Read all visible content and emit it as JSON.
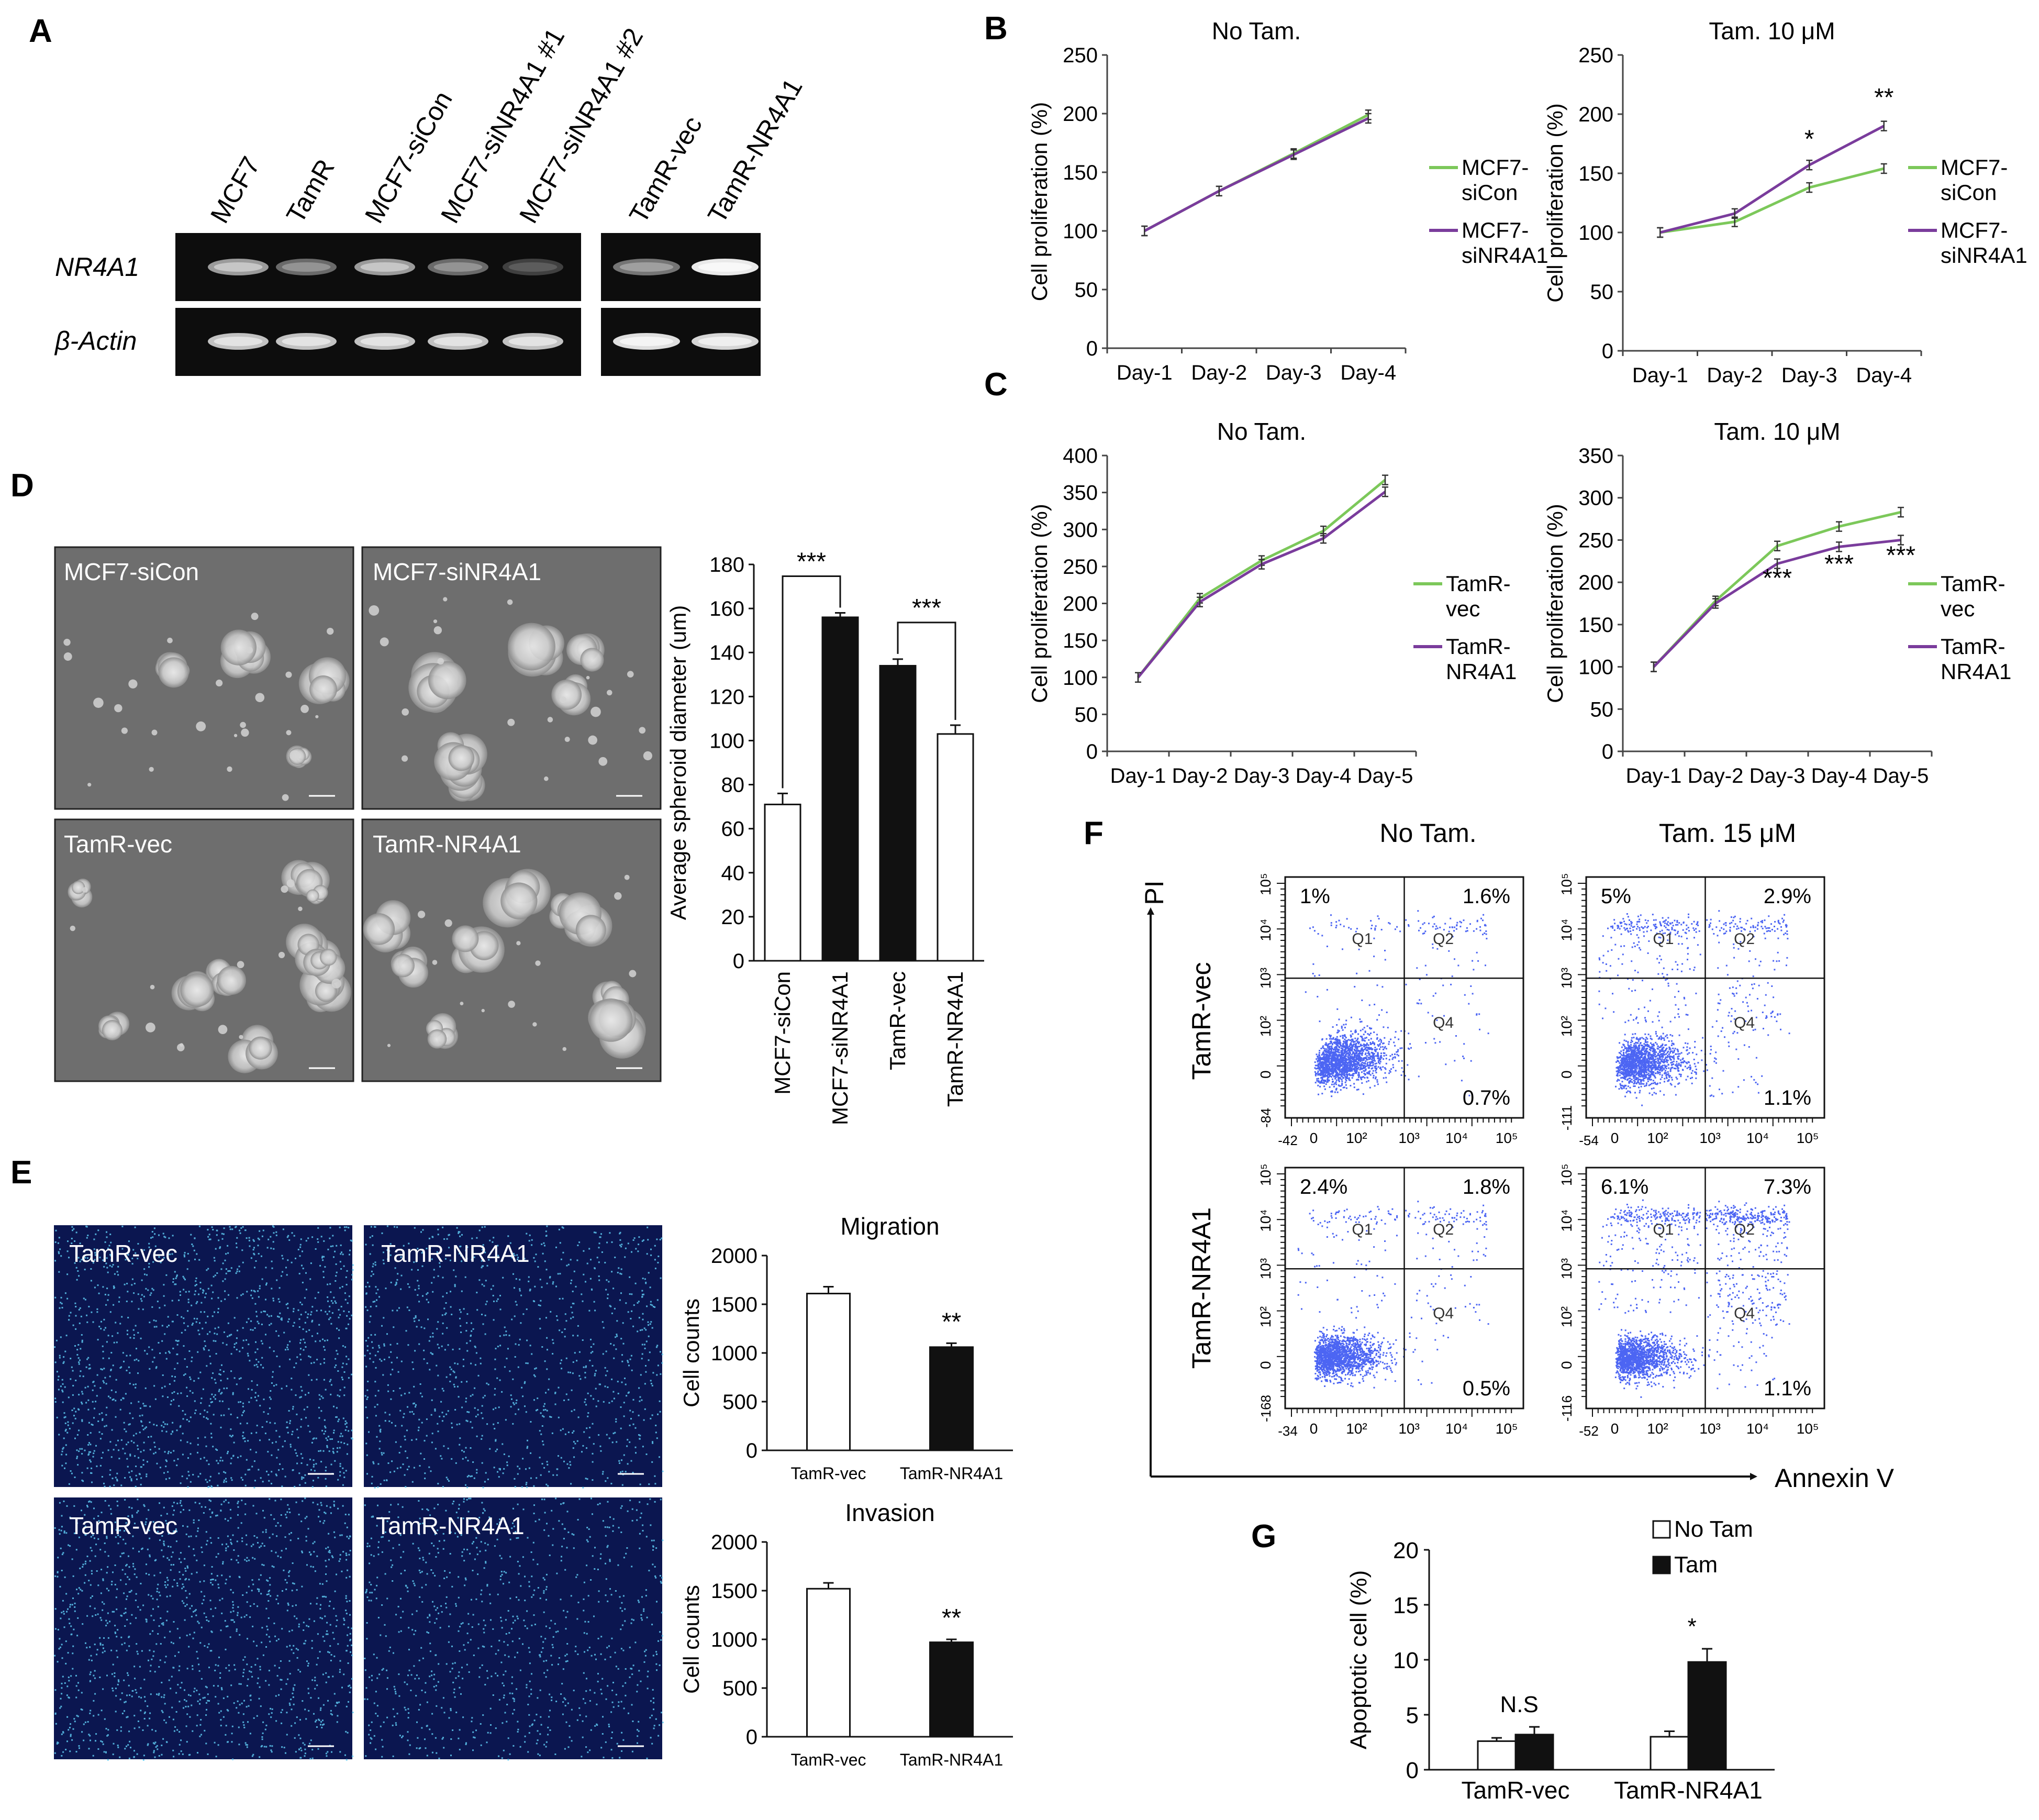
{
  "panel_letters": {
    "A": "A",
    "B": "B",
    "C": "C",
    "D": "D",
    "E": "E",
    "F": "F",
    "G": "G"
  },
  "colors": {
    "green": "#7cc85a",
    "purple": "#7a3c9c",
    "black": "#111111",
    "gel_bg": "#0d0d0d",
    "micro_bg": "#6e6e6e",
    "fluor_bg": "#0b1650",
    "dot": "#1f3ff0"
  },
  "panelA": {
    "lanes_left": [
      "MCF7",
      "TamR",
      "MCF7-siCon",
      "MCF7-siNR4A1 #1",
      "MCF7-siNR4A1 #2"
    ],
    "lanes_right": [
      "TamR-vec",
      "TamR-NR4A1"
    ],
    "row_labels": [
      "NR4A1",
      "β-Actin"
    ],
    "band_intensity_nr4a1_left": [
      0.55,
      0.3,
      0.55,
      0.3,
      0.08
    ],
    "band_intensity_actin_left": [
      0.75,
      0.75,
      0.75,
      0.75,
      0.75
    ],
    "band_intensity_nr4a1_right": [
      0.35,
      0.95
    ],
    "band_intensity_actin_right": [
      0.9,
      0.85
    ]
  },
  "chart_data": [
    {
      "id": "B1",
      "type": "line",
      "title": "No Tam.",
      "ylabel": "Cell proliferation (%)",
      "categories": [
        "Day-1",
        "Day-2",
        "Day-3",
        "Day-4"
      ],
      "ylim": [
        0,
        250
      ],
      "yticks": [
        0,
        50,
        100,
        150,
        200,
        250
      ],
      "series": [
        {
          "name": "MCF7-siCon",
          "legend": [
            "MCF7-",
            "siCon"
          ],
          "color": "#7cc85a",
          "values": [
            100,
            134,
            166,
            199
          ]
        },
        {
          "name": "MCF7-siNR4A1",
          "legend": [
            "MCF7-",
            "siNR4A1"
          ],
          "color": "#7a3c9c",
          "values": [
            100,
            134,
            165,
            196
          ]
        }
      ],
      "annotations": []
    },
    {
      "id": "B2",
      "type": "line",
      "title": "Tam. 10 μM",
      "ylabel": "Cell proliferation (%)",
      "categories": [
        "Day-1",
        "Day-2",
        "Day-3",
        "Day-4"
      ],
      "ylim": [
        0,
        250
      ],
      "yticks": [
        0,
        50,
        100,
        150,
        200,
        250
      ],
      "series": [
        {
          "name": "MCF7-siCon",
          "legend": [
            "MCF7-",
            "siCon"
          ],
          "color": "#7cc85a",
          "values": [
            100,
            109,
            138,
            154
          ]
        },
        {
          "name": "MCF7-siNR4A1",
          "legend": [
            "MCF7-",
            "siNR4A1"
          ],
          "color": "#7a3c9c",
          "values": [
            100,
            116,
            157,
            190
          ]
        }
      ],
      "annotations": [
        {
          "index": 2,
          "text": "*",
          "y": 172
        },
        {
          "index": 3,
          "text": "**",
          "y": 207
        }
      ]
    },
    {
      "id": "C1",
      "type": "line",
      "title": "No Tam.",
      "ylabel": "Cell proliferation (%)",
      "categories": [
        "Day-1",
        "Day-2",
        "Day-3",
        "Day-4",
        "Day-5"
      ],
      "ylim": [
        0,
        400
      ],
      "yticks": [
        0,
        50,
        100,
        150,
        200,
        250,
        300,
        350,
        400
      ],
      "series": [
        {
          "name": "TamR-vec",
          "legend": [
            "TamR-",
            "vec"
          ],
          "color": "#7cc85a",
          "values": [
            100,
            207,
            258,
            298,
            367
          ]
        },
        {
          "name": "TamR-NR4A1",
          "legend": [
            "TamR-",
            "NR4A1"
          ],
          "color": "#7a3c9c",
          "values": [
            100,
            202,
            253,
            288,
            351
          ]
        }
      ],
      "annotations": []
    },
    {
      "id": "C2",
      "type": "line",
      "title": "Tam. 10 μM",
      "ylabel": "Cell proliferation (%)",
      "categories": [
        "Day-1",
        "Day-2",
        "Day-3",
        "Day-4",
        "Day-5"
      ],
      "ylim": [
        0,
        350
      ],
      "yticks": [
        0,
        50,
        100,
        150,
        200,
        250,
        300,
        350
      ],
      "series": [
        {
          "name": "TamR-vec",
          "legend": [
            "TamR-",
            "vec"
          ],
          "color": "#7cc85a",
          "values": [
            100,
            178,
            243,
            266,
            283
          ]
        },
        {
          "name": "TamR-NR4A1",
          "legend": [
            "TamR-",
            "NR4A1"
          ],
          "color": "#7a3c9c",
          "values": [
            100,
            175,
            222,
            242,
            250
          ]
        }
      ],
      "annotations": [
        {
          "index": 2,
          "text": "***",
          "y": 195
        },
        {
          "index": 3,
          "text": "***",
          "y": 212
        },
        {
          "index": 4,
          "text": "***",
          "y": 222
        }
      ]
    },
    {
      "id": "D",
      "type": "bar",
      "ylabel": "Average spheroid diameter (um)",
      "categories": [
        "MCF7-siCon",
        "MCF7-siNR4A1",
        "TamR-vec",
        "TamR-NR4A1"
      ],
      "values": [
        71,
        156,
        134,
        103
      ],
      "errors": [
        5,
        2,
        3,
        4
      ],
      "fills": [
        "white",
        "black",
        "black",
        "white"
      ],
      "ylim": [
        0,
        180
      ],
      "yticks": [
        0,
        20,
        40,
        60,
        80,
        100,
        120,
        140,
        160,
        180
      ],
      "significance": [
        {
          "from": 0,
          "to": 1,
          "text": "***"
        },
        {
          "from": 2,
          "to": 3,
          "text": "***"
        }
      ]
    },
    {
      "id": "E1",
      "type": "bar",
      "title": "Migration",
      "ylabel": "Cell counts",
      "categories": [
        "TamR-vec",
        "TamR-NR4A1"
      ],
      "values": [
        1610,
        1060
      ],
      "errors": [
        70,
        40
      ],
      "fills": [
        "white",
        "black"
      ],
      "ylim": [
        0,
        2000
      ],
      "yticks": [
        0,
        500,
        1000,
        1500,
        2000
      ],
      "stars": [
        "",
        "**"
      ]
    },
    {
      "id": "E2",
      "type": "bar",
      "title": "Invasion",
      "ylabel": "Cell counts",
      "categories": [
        "TamR-vec",
        "TamR-NR4A1"
      ],
      "values": [
        1520,
        970
      ],
      "errors": [
        60,
        30
      ],
      "fills": [
        "white",
        "black"
      ],
      "ylim": [
        0,
        2000
      ],
      "yticks": [
        0,
        500,
        1000,
        1500,
        2000
      ],
      "stars": [
        "",
        "**"
      ]
    },
    {
      "id": "G",
      "type": "bar",
      "ylabel": "Apoptotic cell (%)",
      "categories": [
        "TamR-vec",
        "TamR-NR4A1"
      ],
      "ylim": [
        0,
        20
      ],
      "yticks": [
        0,
        5,
        10,
        15,
        20
      ],
      "series": [
        {
          "name": "No Tam",
          "fill": "white",
          "values": [
            2.6,
            3.0
          ],
          "errors": [
            0.3,
            0.5
          ]
        },
        {
          "name": "Tam",
          "fill": "black",
          "values": [
            3.2,
            9.8
          ],
          "errors": [
            0.7,
            1.2
          ]
        }
      ],
      "labels": [
        "N.S",
        "*"
      ]
    }
  ],
  "panelD": {
    "images": [
      "MCF7-siCon",
      "MCF7-siNR4A1",
      "TamR-vec",
      "TamR-NR4A1"
    ]
  },
  "panelE": {
    "images": [
      "TamR-vec",
      "TamR-NR4A1",
      "TamR-vec",
      "TamR-NR4A1"
    ]
  },
  "panelF": {
    "col_titles": [
      "No Tam.",
      "Tam. 15 μM"
    ],
    "row_titles": [
      "TamR-vec",
      "TamR-NR4A1"
    ],
    "y_axis": "PI",
    "x_axis": "Annexin V",
    "quadrant_labels": [
      "Q1",
      "Q2",
      "Q4"
    ],
    "plots": [
      {
        "q1": "1%",
        "q2": "1.6%",
        "q4": "0.7%",
        "ymin": "-84",
        "xmin": "-42"
      },
      {
        "q1": "5%",
        "q2": "2.9%",
        "q4": "1.1%",
        "ymin": "-111",
        "xmin": "-54"
      },
      {
        "q1": "2.4%",
        "q2": "1.8%",
        "q4": "0.5%",
        "ymin": "-168",
        "xmin": "-34"
      },
      {
        "q1": "6.1%",
        "q2": "7.3%",
        "q4": "1.1%",
        "ymin": "-116",
        "xmin": "-52"
      }
    ],
    "log_ticks": {
      "t0": "0",
      "t2": "10²",
      "t3": "10³",
      "t4": "10⁴",
      "t5": "10⁵"
    }
  }
}
